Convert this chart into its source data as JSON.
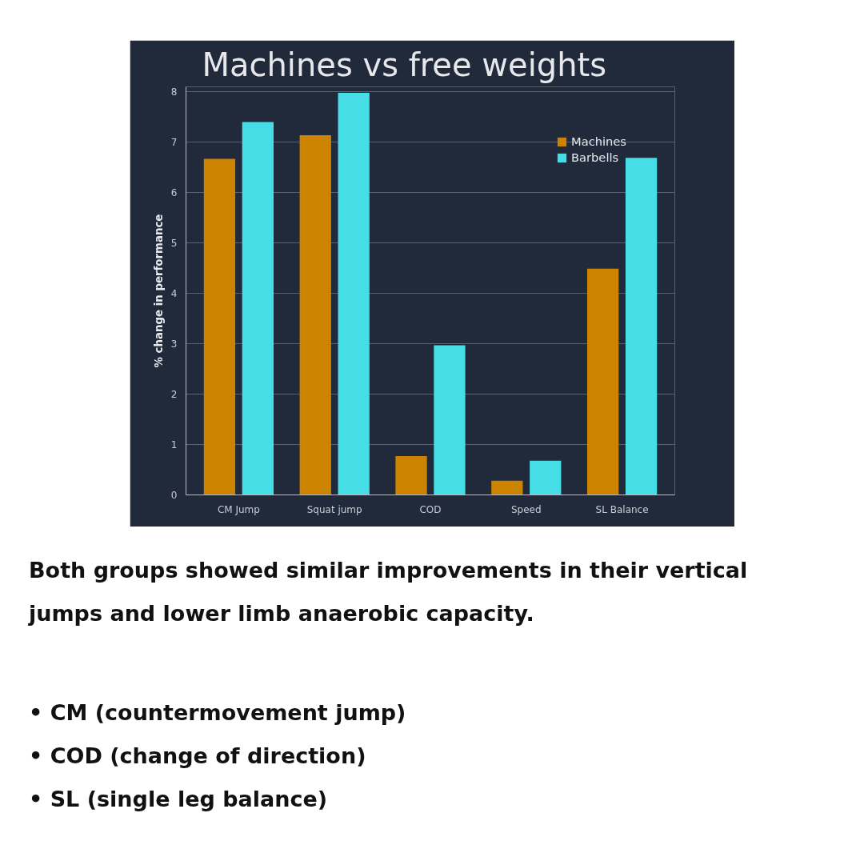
{
  "chart_data": {
    "type": "bar",
    "title": "Machines vs free weights",
    "ylabel": "% change in performance",
    "categories": [
      "CM Jump",
      "Squat jump",
      "COD",
      "Speed",
      "SL Balance"
    ],
    "series": [
      {
        "name": "Machines",
        "color": "#cc8400",
        "values": [
          6.67,
          7.14,
          0.77,
          0.28,
          4.49
        ]
      },
      {
        "name": "Barbells",
        "color": "#45dde6",
        "values": [
          7.4,
          7.98,
          2.97,
          0.68,
          6.69
        ]
      }
    ],
    "ylim": [
      0,
      8.1
    ],
    "yticks": [
      0,
      1,
      2,
      3,
      4,
      5,
      6,
      7,
      8
    ],
    "grid": "y",
    "legend": "top right",
    "annotations": [
      "Both groups showed similar improvements in their vertical jumps and lower limb anaerobic capacity.",
      "• CM (countermovement jump)",
      "• COD (change of direction)",
      "• SL (single leg balance)"
    ]
  }
}
